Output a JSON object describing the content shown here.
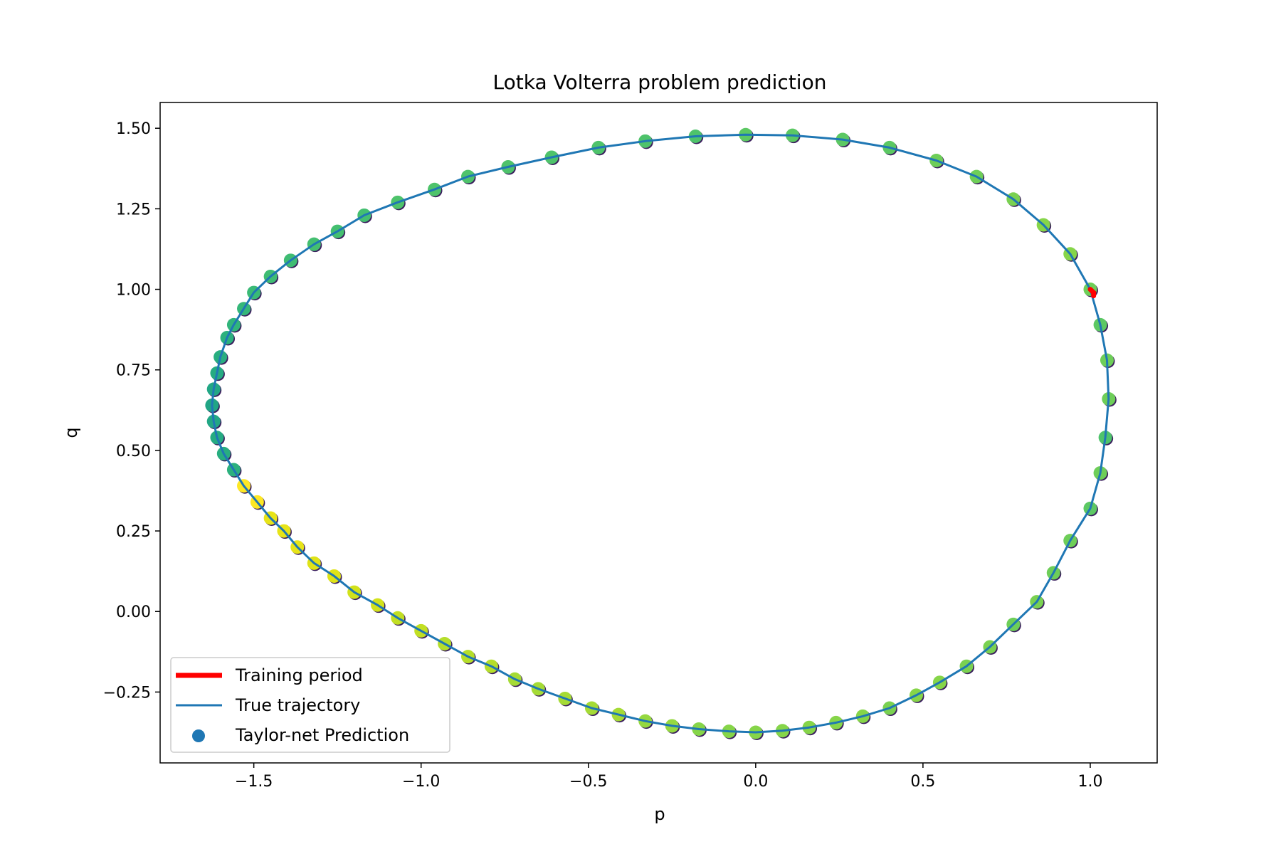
{
  "chart_data": {
    "type": "scatter",
    "title": "Lotka Volterra problem prediction",
    "xlabel": "p",
    "ylabel": "q",
    "xlim": [
      -1.78,
      1.2
    ],
    "ylim": [
      -0.47,
      1.58
    ],
    "x_ticks": [
      -1.5,
      -1.0,
      -0.5,
      0.0,
      0.5,
      1.0
    ],
    "x_tick_labels": [
      "−1.5",
      "−1.0",
      "−0.5",
      "0.0",
      "0.5",
      "1.0"
    ],
    "y_ticks": [
      -0.25,
      0.0,
      0.25,
      0.5,
      0.75,
      1.0,
      1.25,
      1.5
    ],
    "y_tick_labels": [
      "−0.25",
      "0.00",
      "0.25",
      "0.50",
      "0.75",
      "1.00",
      "1.25",
      "1.50"
    ],
    "grid": false,
    "legend_position": "lower-left",
    "legend": [
      {
        "label": "Training period",
        "kind": "thick-line",
        "color": "#ff0000"
      },
      {
        "label": "True trajectory",
        "kind": "line",
        "color": "#1f77b4"
      },
      {
        "label": "Taylor-net Prediction",
        "kind": "marker",
        "color": "#1f77b4"
      }
    ],
    "true_trajectory": {
      "color": "#1f77b4",
      "x": [
        1.0,
        1.03,
        1.05,
        1.055,
        1.045,
        1.03,
        1.0,
        0.94,
        0.89,
        0.84,
        0.77,
        0.7,
        0.63,
        0.55,
        0.48,
        0.4,
        0.32,
        0.24,
        0.16,
        0.08,
        0.0,
        -0.08,
        -0.17,
        -0.25,
        -0.33,
        -0.41,
        -0.49,
        -0.57,
        -0.65,
        -0.72,
        -0.79,
        -0.86,
        -0.93,
        -1.0,
        -1.07,
        -1.13,
        -1.2,
        -1.26,
        -1.32,
        -1.37,
        -1.41,
        -1.45,
        -1.49,
        -1.53,
        -1.56,
        -1.59,
        -1.61,
        -1.62,
        -1.625,
        -1.62,
        -1.61,
        -1.6,
        -1.58,
        -1.56,
        -1.53,
        -1.5,
        -1.45,
        -1.39,
        -1.32,
        -1.25,
        -1.17,
        -1.07,
        -0.96,
        -0.86,
        -0.74,
        -0.61,
        -0.47,
        -0.33,
        -0.18,
        -0.03,
        0.11,
        0.26,
        0.4,
        0.54,
        0.66,
        0.77,
        0.86,
        0.94,
        1.0
      ],
      "y": [
        1.0,
        0.89,
        0.78,
        0.66,
        0.54,
        0.43,
        0.32,
        0.22,
        0.12,
        0.03,
        -0.04,
        -0.11,
        -0.17,
        -0.22,
        -0.26,
        -0.3,
        -0.325,
        -0.345,
        -0.36,
        -0.37,
        -0.375,
        -0.372,
        -0.365,
        -0.355,
        -0.34,
        -0.32,
        -0.3,
        -0.27,
        -0.24,
        -0.21,
        -0.17,
        -0.14,
        -0.1,
        -0.06,
        -0.02,
        0.02,
        0.06,
        0.11,
        0.15,
        0.2,
        0.25,
        0.29,
        0.34,
        0.39,
        0.44,
        0.49,
        0.54,
        0.59,
        0.64,
        0.69,
        0.74,
        0.79,
        0.85,
        0.89,
        0.94,
        0.99,
        1.04,
        1.09,
        1.14,
        1.18,
        1.23,
        1.27,
        1.31,
        1.35,
        1.38,
        1.41,
        1.44,
        1.46,
        1.475,
        1.48,
        1.478,
        1.465,
        1.44,
        1.4,
        1.35,
        1.28,
        1.2,
        1.11,
        1.0
      ]
    },
    "training_period": {
      "color": "#ff0000",
      "x": [
        1.0,
        1.01,
        1.01
      ],
      "y": [
        1.0,
        0.99,
        0.98
      ]
    },
    "prediction_points": {
      "edge_color": "#3b1f5e",
      "x": [
        1.0,
        1.03,
        1.05,
        1.055,
        1.045,
        1.03,
        1.0,
        0.94,
        0.89,
        0.84,
        0.77,
        0.7,
        0.63,
        0.55,
        0.48,
        0.4,
        0.32,
        0.24,
        0.16,
        0.08,
        0.0,
        -0.08,
        -0.17,
        -0.25,
        -0.33,
        -0.41,
        -0.49,
        -0.57,
        -0.65,
        -0.72,
        -0.79,
        -0.86,
        -0.93,
        -1.0,
        -1.07,
        -1.13,
        -1.2,
        -1.26,
        -1.32,
        -1.37,
        -1.41,
        -1.45,
        -1.49,
        -1.53,
        -1.56,
        -1.59,
        -1.61,
        -1.62,
        -1.625,
        -1.62,
        -1.61,
        -1.6,
        -1.58,
        -1.56,
        -1.53,
        -1.5,
        -1.45,
        -1.39,
        -1.32,
        -1.25,
        -1.17,
        -1.07,
        -0.96,
        -0.86,
        -0.74,
        -0.61,
        -0.47,
        -0.33,
        -0.18,
        -0.03,
        0.11,
        0.26,
        0.4,
        0.54,
        0.66,
        0.77,
        0.86,
        0.94
      ],
      "y": [
        1.0,
        0.89,
        0.78,
        0.66,
        0.54,
        0.43,
        0.32,
        0.22,
        0.12,
        0.03,
        -0.04,
        -0.11,
        -0.17,
        -0.22,
        -0.26,
        -0.3,
        -0.325,
        -0.345,
        -0.36,
        -0.37,
        -0.375,
        -0.372,
        -0.365,
        -0.355,
        -0.34,
        -0.32,
        -0.3,
        -0.27,
        -0.24,
        -0.21,
        -0.17,
        -0.14,
        -0.1,
        -0.06,
        -0.02,
        0.02,
        0.06,
        0.11,
        0.15,
        0.2,
        0.25,
        0.29,
        0.34,
        0.39,
        0.44,
        0.49,
        0.54,
        0.59,
        0.64,
        0.69,
        0.74,
        0.79,
        0.85,
        0.89,
        0.94,
        0.99,
        1.04,
        1.09,
        1.14,
        1.18,
        1.23,
        1.27,
        1.31,
        1.35,
        1.38,
        1.41,
        1.44,
        1.46,
        1.475,
        1.48,
        1.478,
        1.465,
        1.44,
        1.4,
        1.35,
        1.28,
        1.2,
        1.11
      ],
      "colors": [
        "#6ece58",
        "#5cc863",
        "#6ece58",
        "#6ece58",
        "#4ec36b",
        "#6ece58",
        "#5cc863",
        "#6ece58",
        "#6ece58",
        "#7ad151",
        "#6ece58",
        "#7ad151",
        "#7ad151",
        "#86d549",
        "#86d549",
        "#7ad151",
        "#86d549",
        "#86d549",
        "#86d549",
        "#86d549",
        "#86d549",
        "#86d549",
        "#86d549",
        "#95d840",
        "#95d840",
        "#a5db36",
        "#a5db36",
        "#a5db36",
        "#a5db36",
        "#a5db36",
        "#b5de2b",
        "#b5de2b",
        "#b5de2b",
        "#c2df23",
        "#c2df23",
        "#d2e21b",
        "#d2e21b",
        "#dfe318",
        "#dfe318",
        "#e7e419",
        "#e7e419",
        "#e7e419",
        "#fde725",
        "#fde725",
        "#2cb17e",
        "#28ae80",
        "#25ab82",
        "#22a785",
        "#21a585",
        "#22a785",
        "#25ab82",
        "#28ae80",
        "#2cb17e",
        "#31b57b",
        "#35b779",
        "#3aba76",
        "#3fbc73",
        "#3fbc73",
        "#44bf70",
        "#44bf70",
        "#44bf70",
        "#4ec36b",
        "#4ec36b",
        "#4ec36b",
        "#4ec36b",
        "#4ec36b",
        "#4ec36b",
        "#4ec36b",
        "#4ec36b",
        "#5cc863",
        "#5cc863",
        "#5cc863",
        "#5cc863",
        "#6ece58",
        "#6ece58",
        "#7ad151",
        "#86d549",
        "#86d549"
      ]
    }
  }
}
